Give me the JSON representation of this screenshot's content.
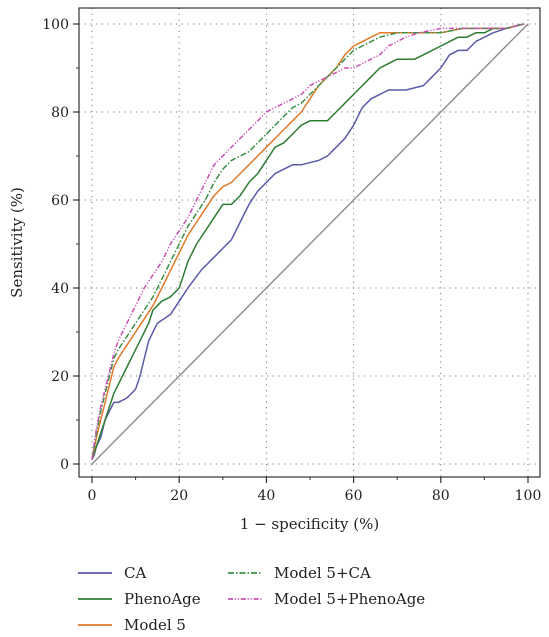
{
  "chart_data": {
    "type": "line",
    "title": "",
    "xlabel": "1 − specificity (%)",
    "ylabel": "Sensitivity (%)",
    "xlim": [
      0,
      100
    ],
    "ylim": [
      0,
      100
    ],
    "x_ticks": [
      0,
      20,
      40,
      60,
      80,
      100
    ],
    "y_ticks": [
      0,
      20,
      40,
      60,
      80,
      100
    ],
    "x_tick_labels": [
      "0",
      "20",
      "40",
      "60",
      "80",
      "100"
    ],
    "y_tick_labels": [
      "0",
      "20",
      "40",
      "60",
      "80",
      "100"
    ],
    "grid": true,
    "legend_position": "bottom",
    "reference_line": {
      "x": [
        0,
        100
      ],
      "y": [
        0,
        100
      ],
      "color": "#8c8c8c"
    },
    "series": [
      {
        "name": "CA",
        "color": "#5a5aa8",
        "dash": "solid",
        "x": [
          0,
          0.5,
          1,
          2,
          2.5,
          3,
          4,
          5,
          6,
          8,
          10,
          11,
          12,
          13,
          14,
          15,
          18,
          20,
          22,
          25,
          28,
          30,
          32,
          34,
          36,
          38,
          40,
          42,
          44,
          46,
          48,
          52,
          54,
          56,
          58,
          60,
          62,
          64,
          66,
          68,
          72,
          76,
          78,
          80,
          82,
          84,
          86,
          88,
          90,
          92,
          95,
          99
        ],
        "y": [
          1,
          2,
          4,
          6,
          8,
          10,
          12,
          14,
          14,
          15,
          17,
          20,
          24,
          28,
          30,
          32,
          34,
          37,
          40,
          44,
          47,
          49,
          51,
          55,
          59,
          62,
          64,
          66,
          67,
          68,
          68,
          69,
          70,
          72,
          74,
          77,
          81,
          83,
          84,
          85,
          85,
          86,
          88,
          90,
          93,
          94,
          94,
          96,
          97,
          98,
          99,
          100
        ]
      },
      {
        "name": "PhenoAge",
        "color": "#2e7d32",
        "dash": "solid",
        "x": [
          0,
          1,
          2,
          3,
          4,
          5,
          7,
          9,
          11,
          13,
          14,
          16,
          18,
          20,
          21,
          22,
          24,
          26,
          28,
          30,
          32,
          34,
          36,
          38,
          40,
          42,
          44,
          46,
          48,
          50,
          52,
          54,
          56,
          58,
          60,
          62,
          64,
          66,
          68,
          70,
          72,
          74,
          76,
          78,
          80,
          82,
          84,
          86,
          88,
          90,
          92,
          95,
          99
        ],
        "y": [
          1,
          4,
          7,
          10,
          13,
          16,
          20,
          24,
          28,
          32,
          35,
          37,
          38,
          40,
          43,
          46,
          50,
          53,
          56,
          59,
          59,
          61,
          64,
          66,
          69,
          72,
          73,
          75,
          77,
          78,
          78,
          78,
          80,
          82,
          84,
          86,
          88,
          90,
          91,
          92,
          92,
          92,
          93,
          94,
          95,
          96,
          97,
          97,
          98,
          98,
          99,
          99,
          100
        ]
      },
      {
        "name": "Model 5",
        "color": "#e07a2a",
        "dash": "solid",
        "x": [
          0,
          1,
          2,
          3,
          4,
          5,
          6,
          8,
          10,
          12,
          14,
          16,
          18,
          20,
          22,
          24,
          26,
          28,
          30,
          32,
          34,
          36,
          38,
          40,
          42,
          44,
          46,
          48,
          50,
          52,
          54,
          56,
          58,
          60,
          62,
          64,
          66,
          70,
          75,
          80,
          85,
          90,
          95,
          99
        ],
        "y": [
          1,
          6,
          10,
          14,
          18,
          22,
          24,
          27,
          30,
          33,
          36,
          40,
          44,
          48,
          52,
          55,
          58,
          61,
          63,
          64,
          66,
          68,
          70,
          72,
          74,
          76,
          78,
          80,
          83,
          86,
          88,
          90,
          93,
          95,
          96,
          97,
          98,
          98,
          98,
          98,
          99,
          99,
          99,
          100
        ]
      },
      {
        "name": "Model 5+CA",
        "color": "#3c8f47",
        "dash": "dashdot",
        "x": [
          0,
          1,
          2,
          3,
          4,
          5,
          6,
          8,
          10,
          12,
          14,
          16,
          18,
          20,
          22,
          24,
          26,
          28,
          30,
          32,
          34,
          36,
          38,
          40,
          42,
          44,
          46,
          48,
          50,
          52,
          54,
          56,
          58,
          60,
          62,
          64,
          66,
          70,
          75,
          80,
          85,
          90,
          95,
          99
        ],
        "y": [
          1,
          7,
          12,
          16,
          20,
          24,
          26,
          29,
          32,
          35,
          38,
          42,
          46,
          50,
          54,
          57,
          60,
          64,
          67,
          69,
          70,
          71,
          73,
          75,
          77,
          79,
          81,
          82,
          84,
          86,
          88,
          90,
          92,
          94,
          95,
          96,
          97,
          98,
          98,
          98,
          99,
          99,
          99,
          100
        ]
      },
      {
        "name": "Model 5+PhenoAge",
        "color": "#c850b4",
        "dash": "dashdotdot",
        "x": [
          0,
          1,
          2,
          3,
          4,
          5,
          6,
          8,
          10,
          12,
          14,
          16,
          18,
          20,
          22,
          24,
          26,
          28,
          30,
          32,
          34,
          36,
          38,
          40,
          42,
          44,
          46,
          48,
          50,
          52,
          54,
          56,
          58,
          60,
          62,
          64,
          66,
          68,
          70,
          72,
          75,
          80,
          85,
          90,
          95,
          99
        ],
        "y": [
          1,
          8,
          13,
          17,
          21,
          25,
          28,
          32,
          36,
          40,
          43,
          46,
          50,
          53,
          56,
          60,
          64,
          68,
          70,
          72,
          74,
          76,
          78,
          80,
          81,
          82,
          83,
          84,
          86,
          87,
          88,
          89,
          90,
          90,
          91,
          92,
          93,
          95,
          96,
          97,
          98,
          99,
          99,
          99,
          99,
          100
        ]
      }
    ]
  }
}
